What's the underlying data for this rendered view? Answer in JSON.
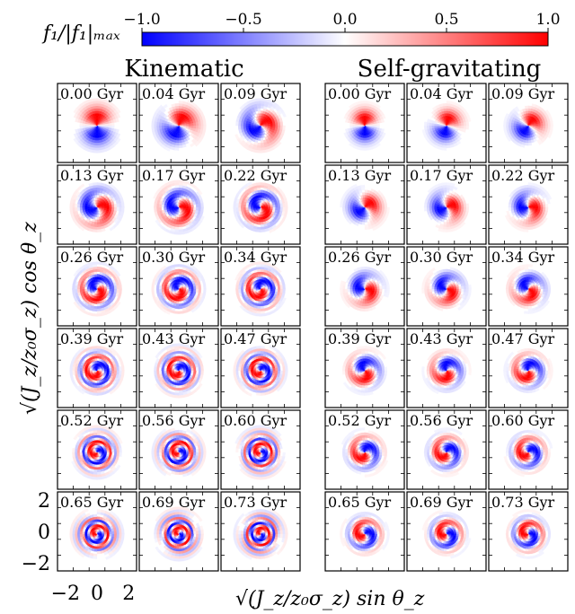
{
  "chart_data": {
    "type": "heatmap",
    "colorbar": {
      "label": "f₁/|f₁|ₘₐₓ",
      "ticks": [
        "−1.0",
        "−0.5",
        "0.0",
        "0.5",
        "1.0"
      ],
      "range": [
        -1.0,
        1.0
      ],
      "colormap": [
        "#0000ff",
        "#ffffff",
        "#ff0000"
      ]
    },
    "columns_titles": [
      "Kinematic",
      "Self-gravitating"
    ],
    "xlabel": "√(J_z/z₀σ_z) sin θ_z",
    "ylabel": "√(J_z/z₀σ_z) cos θ_z",
    "xticks": [
      "−2",
      "0",
      "2"
    ],
    "yticks": [
      "2",
      "0",
      "−2"
    ],
    "xlim": [
      -2.5,
      2.5
    ],
    "ylim": [
      -2.5,
      2.5
    ],
    "time_unit": "Gyr",
    "times": [
      [
        "0.00 Gyr",
        "0.04 Gyr",
        "0.09 Gyr"
      ],
      [
        "0.13 Gyr",
        "0.17 Gyr",
        "0.22 Gyr"
      ],
      [
        "0.26 Gyr",
        "0.30 Gyr",
        "0.34 Gyr"
      ],
      [
        "0.39 Gyr",
        "0.43 Gyr",
        "0.47 Gyr"
      ],
      [
        "0.52 Gyr",
        "0.56 Gyr",
        "0.60 Gyr"
      ],
      [
        "0.65 Gyr",
        "0.69 Gyr",
        "0.73 Gyr"
      ]
    ],
    "time_values": [
      [
        0.0,
        0.04,
        0.09
      ],
      [
        0.13,
        0.17,
        0.22
      ],
      [
        0.26,
        0.3,
        0.34
      ],
      [
        0.39,
        0.43,
        0.47
      ],
      [
        0.52,
        0.56,
        0.6
      ],
      [
        0.65,
        0.69,
        0.73
      ]
    ]
  }
}
